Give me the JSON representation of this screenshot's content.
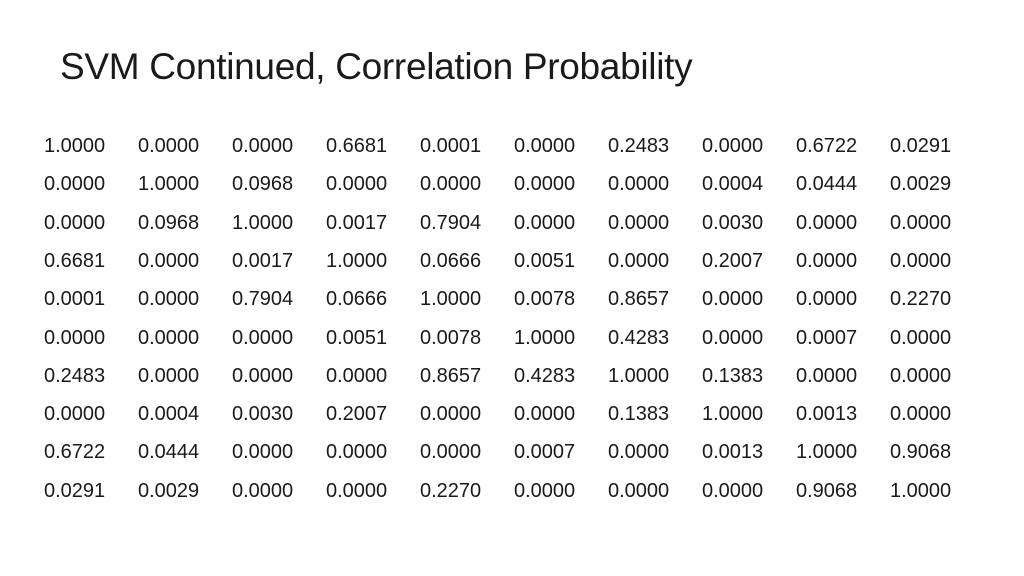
{
  "header": {
    "title": "SVM Continued, Correlation Probability"
  },
  "table": {
    "rows": [
      [
        "1.0000",
        "0.0000",
        "0.0000",
        "0.6681",
        "0.0001",
        "0.0000",
        "0.2483",
        "0.0000",
        "0.6722",
        "0.0291"
      ],
      [
        "0.0000",
        "1.0000",
        "0.0968",
        "0.0000",
        "0.0000",
        "0.0000",
        "0.0000",
        "0.0004",
        "0.0444",
        "0.0029"
      ],
      [
        "0.0000",
        "0.0968",
        "1.0000",
        "0.0017",
        "0.7904",
        "0.0000",
        "0.0000",
        "0.0030",
        "0.0000",
        "0.0000"
      ],
      [
        "0.6681",
        "0.0000",
        "0.0017",
        "1.0000",
        "0.0666",
        "0.0051",
        "0.0000",
        "0.2007",
        "0.0000",
        "0.0000"
      ],
      [
        "0.0001",
        "0.0000",
        "0.7904",
        "0.0666",
        "1.0000",
        "0.0078",
        "0.8657",
        "0.0000",
        "0.0000",
        "0.2270"
      ],
      [
        "0.0000",
        "0.0000",
        "0.0000",
        "0.0051",
        "0.0078",
        "1.0000",
        "0.4283",
        "0.0000",
        "0.0007",
        "0.0000"
      ],
      [
        "0.2483",
        "0.0000",
        "0.0000",
        "0.0000",
        "0.8657",
        "0.4283",
        "1.0000",
        "0.1383",
        "0.0000",
        "0.0000"
      ],
      [
        "0.0000",
        "0.0004",
        "0.0030",
        "0.2007",
        "0.0000",
        "0.0000",
        "0.1383",
        "1.0000",
        "0.0013",
        "0.0000"
      ],
      [
        "0.6722",
        "0.0444",
        "0.0000",
        "0.0000",
        "0.0000",
        "0.0007",
        "0.0000",
        "0.0013",
        "1.0000",
        "0.9068"
      ],
      [
        "0.0291",
        "0.0029",
        "0.0000",
        "0.0000",
        "0.2270",
        "0.0000",
        "0.0000",
        "0.0000",
        "0.9068",
        "1.0000"
      ]
    ]
  }
}
